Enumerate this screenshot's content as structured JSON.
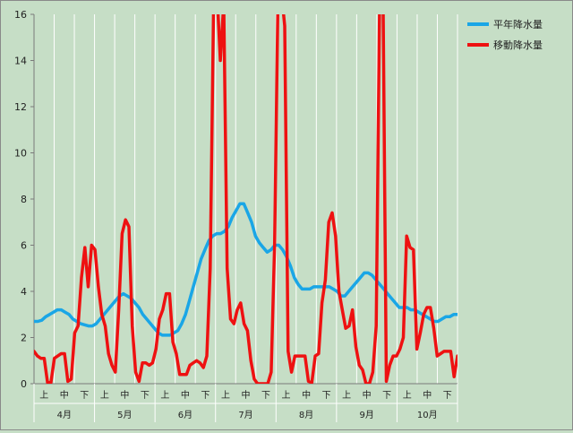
{
  "chart_data": {
    "type": "line",
    "title": "",
    "xlabel": "",
    "ylabel": "",
    "ylim": [
      0,
      16
    ],
    "yticks": [
      0,
      2,
      4,
      6,
      8,
      10,
      12,
      14,
      16
    ],
    "grid": "vertical",
    "legend_position": "top-right",
    "months": [
      "4月",
      "5月",
      "6月",
      "7月",
      "8月",
      "9月",
      "10月"
    ],
    "periods": [
      "上",
      "中",
      "下"
    ],
    "series": [
      {
        "name": "平年降水量",
        "color": "#1aa6e6",
        "values": [
          2.7,
          2.7,
          2.75,
          2.9,
          3.0,
          3.1,
          3.2,
          3.2,
          3.1,
          3.0,
          2.8,
          2.7,
          2.6,
          2.55,
          2.5,
          2.5,
          2.6,
          2.8,
          3.0,
          3.2,
          3.4,
          3.6,
          3.8,
          3.9,
          3.8,
          3.7,
          3.5,
          3.3,
          3.0,
          2.8,
          2.6,
          2.4,
          2.2,
          2.1,
          2.1,
          2.1,
          2.2,
          2.3,
          2.6,
          3.0,
          3.6,
          4.2,
          4.8,
          5.4,
          5.8,
          6.2,
          6.4,
          6.5,
          6.5,
          6.6,
          6.8,
          7.2,
          7.5,
          7.8,
          7.8,
          7.4,
          7.0,
          6.4,
          6.1,
          5.9,
          5.7,
          5.8,
          6.0,
          6.0,
          5.8,
          5.5,
          5.1,
          4.6,
          4.3,
          4.1,
          4.1,
          4.1,
          4.2,
          4.2,
          4.2,
          4.2,
          4.2,
          4.1,
          4.0,
          3.8,
          3.8,
          4.0,
          4.2,
          4.4,
          4.6,
          4.8,
          4.8,
          4.7,
          4.5,
          4.3,
          4.1,
          3.9,
          3.7,
          3.5,
          3.3,
          3.3,
          3.3,
          3.2,
          3.2,
          3.1,
          3.0,
          2.9,
          2.8,
          2.7,
          2.7,
          2.8,
          2.9,
          2.9,
          3.0,
          3.0
        ]
      },
      {
        "name": "移動降水量",
        "color": "#ee1111",
        "values": [
          1.4,
          1.2,
          1.1,
          1.1,
          0.05,
          0.05,
          1.1,
          1.2,
          1.3,
          1.3,
          0.1,
          0.2,
          2.2,
          2.5,
          4.6,
          5.9,
          4.2,
          6.0,
          5.8,
          4.2,
          3.0,
          2.5,
          1.3,
          0.8,
          0.5,
          3.2,
          6.5,
          7.1,
          6.8,
          2.5,
          0.5,
          0.1,
          0.9,
          0.9,
          0.8,
          0.9,
          1.5,
          2.8,
          3.2,
          3.9,
          3.9,
          1.8,
          1.3,
          0.4,
          0.4,
          0.4,
          0.8,
          0.9,
          1.0,
          0.9,
          0.7,
          1.2,
          5.0,
          16.5,
          17.0,
          14.0,
          16.5,
          5.0,
          2.8,
          2.6,
          3.2,
          3.5,
          2.6,
          2.3,
          1.0,
          0.2,
          0.0,
          0.0,
          0.0,
          0.0,
          0.5,
          6.0,
          16.5,
          17.0,
          15.5,
          1.4,
          0.5,
          1.2,
          1.2,
          1.2,
          1.2,
          0.1,
          0.05,
          1.2,
          1.3,
          3.5,
          4.5,
          7.0,
          7.4,
          6.4,
          4.0,
          3.2,
          2.4,
          2.5,
          3.2,
          1.6,
          0.8,
          0.6,
          0.0,
          0.0,
          0.5,
          2.5,
          16.5,
          17.0,
          0.1,
          0.8,
          1.2,
          1.2,
          1.5,
          2.0,
          6.4,
          5.9,
          5.8,
          1.5,
          2.2,
          3.0,
          3.3,
          3.3,
          2.4,
          1.2,
          1.3,
          1.4,
          1.4,
          1.4,
          0.3,
          1.2
        ]
      }
    ]
  }
}
